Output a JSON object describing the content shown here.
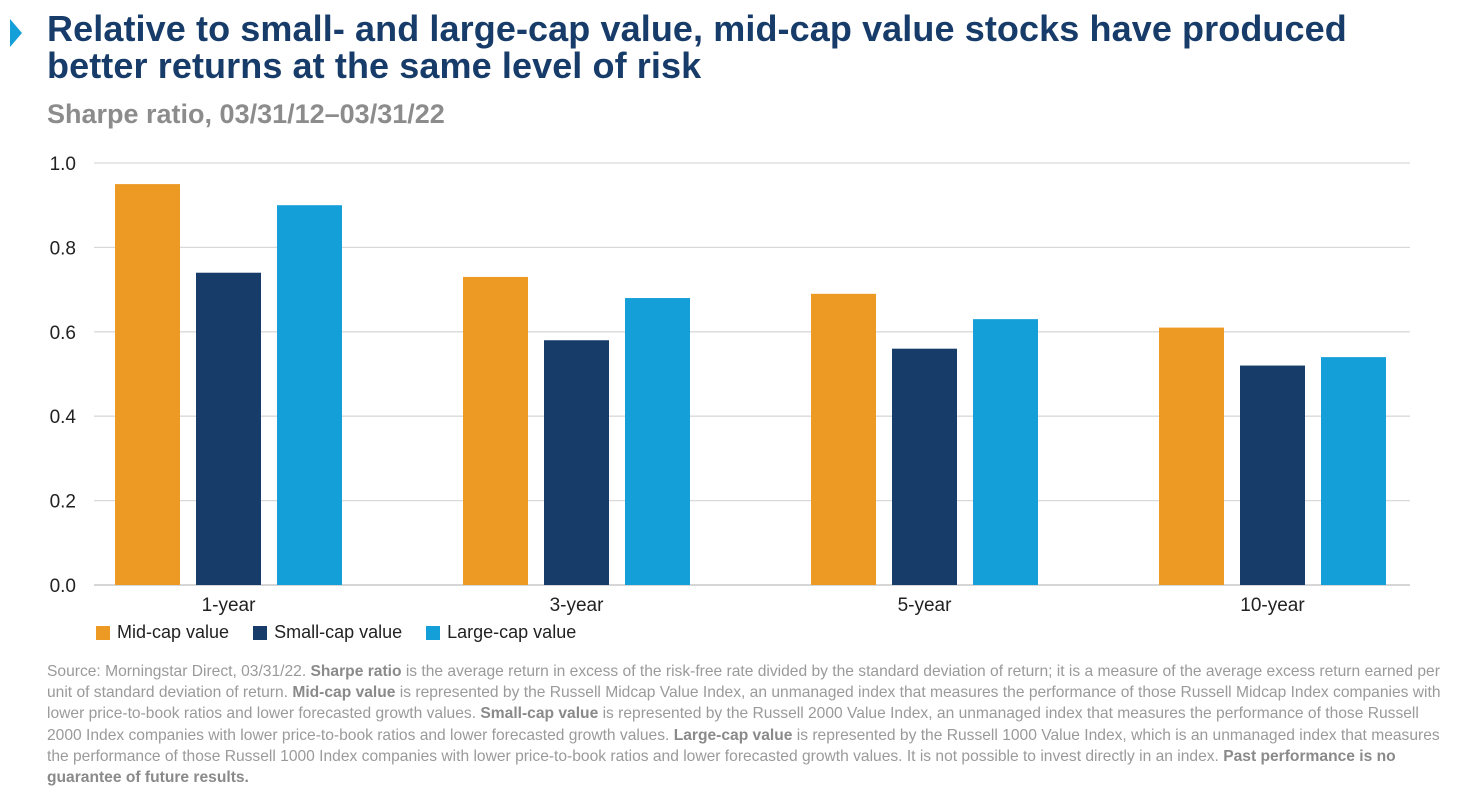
{
  "title": "Relative to small- and large-cap value, mid-cap value stocks have produced better returns at the same level of risk",
  "subtitle": "Sharpe ratio, 03/31/12–03/31/22",
  "chart_data": {
    "type": "bar",
    "categories": [
      "1-year",
      "3-year",
      "5-year",
      "10-year"
    ],
    "series": [
      {
        "name": "Mid-cap value",
        "color": "#ec9a24",
        "values": [
          0.95,
          0.73,
          0.69,
          0.61
        ]
      },
      {
        "name": "Small-cap value",
        "color": "#173c69",
        "values": [
          0.74,
          0.58,
          0.56,
          0.52
        ]
      },
      {
        "name": "Large-cap value",
        "color": "#159fd9",
        "values": [
          0.9,
          0.68,
          0.63,
          0.54
        ]
      }
    ],
    "ylim": [
      0,
      1.0
    ],
    "yticks": [
      "0.0",
      "0.2",
      "0.4",
      "0.6",
      "0.8",
      "1.0"
    ],
    "grid": true,
    "legend": "bottom-left"
  },
  "footnote": [
    {
      "text": "Source: Morningstar Direct, 03/31/22. ",
      "bold": false
    },
    {
      "text": "Sharpe ratio",
      "bold": true
    },
    {
      "text": " is the average return in excess of the risk-free rate divided by the standard deviation of return; it is a measure of the average excess return earned per unit of standard deviation of return. ",
      "bold": false
    },
    {
      "text": "Mid-cap value",
      "bold": true
    },
    {
      "text": " is represented by the Russell Midcap Value Index, an unmanaged index that measures the performance of those Russell Midcap Index companies with lower price-to-book ratios and lower forecasted growth values. ",
      "bold": false
    },
    {
      "text": "Small-cap value",
      "bold": true
    },
    {
      "text": " is represented by the Russell 2000 Value Index, an unmanaged index that measures the performance of those Russell 2000 Index companies with lower price-to-book ratios and lower forecasted growth values. ",
      "bold": false
    },
    {
      "text": "Large-cap value",
      "bold": true
    },
    {
      "text": " is represented by the Russell 1000 Value Index, which is an unmanaged index that measures the performance of those Russell 1000 Index companies with lower price-to-book ratios and lower forecasted growth values. It is not possible to invest directly in an index. ",
      "bold": false
    },
    {
      "text": "Past performance is no guarantee of future results.",
      "bold": true
    }
  ]
}
